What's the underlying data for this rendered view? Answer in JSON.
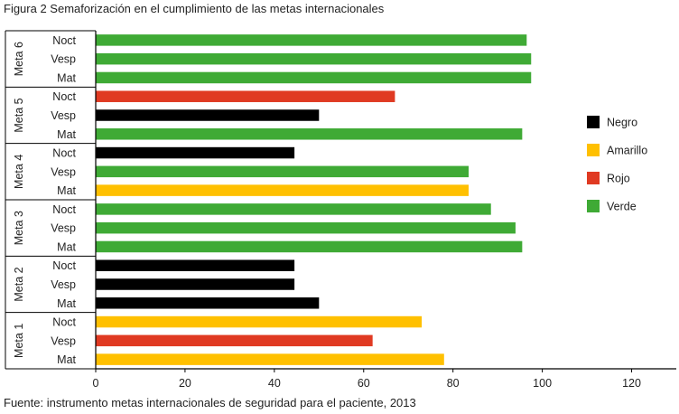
{
  "title": "Figura 2 Semaforización en el cumplimiento de las metas internacionales",
  "source": "Fuente: instrumento metas internacionales de seguridad para el paciente, 2013",
  "colors": {
    "Negro": "#000000",
    "Amarillo": "#ffc000",
    "Rojo": "#e03a22",
    "Verde": "#3faa35",
    "axis": "#000000"
  },
  "chart_data": {
    "type": "bar",
    "orientation": "horizontal",
    "xlim": [
      0,
      130
    ],
    "xticks": [
      "0",
      "20",
      "40",
      "60",
      "80",
      "100",
      "120"
    ],
    "legend": [
      "Negro",
      "Amarillo",
      "Rojo",
      "Verde"
    ],
    "legend_position": "right",
    "groups": [
      {
        "label": "Meta 6",
        "rows": [
          {
            "label": "Noct",
            "value": 96.5,
            "color": "Verde"
          },
          {
            "label": "Vesp",
            "value": 97.5,
            "color": "Verde"
          },
          {
            "label": "Mat",
            "value": 97.5,
            "color": "Verde"
          }
        ]
      },
      {
        "label": "Meta 5",
        "rows": [
          {
            "label": "Noct",
            "value": 67,
            "color": "Rojo"
          },
          {
            "label": "Vesp",
            "value": 50,
            "color": "Negro"
          },
          {
            "label": "Mat",
            "value": 95.5,
            "color": "Verde"
          }
        ]
      },
      {
        "label": "Meta 4",
        "rows": [
          {
            "label": "Noct",
            "value": 44.5,
            "color": "Negro"
          },
          {
            "label": "Vesp",
            "value": 83.5,
            "color": "Verde"
          },
          {
            "label": "Mat",
            "value": 83.5,
            "color": "Amarillo"
          }
        ]
      },
      {
        "label": "Meta 3",
        "rows": [
          {
            "label": "Noct",
            "value": 88.5,
            "color": "Verde"
          },
          {
            "label": "Vesp",
            "value": 94,
            "color": "Verde"
          },
          {
            "label": "Mat",
            "value": 95.5,
            "color": "Verde"
          }
        ]
      },
      {
        "label": "Meta 2",
        "rows": [
          {
            "label": "Noct",
            "value": 44.5,
            "color": "Negro"
          },
          {
            "label": "Vesp",
            "value": 44.5,
            "color": "Negro"
          },
          {
            "label": "Mat",
            "value": 50,
            "color": "Negro"
          }
        ]
      },
      {
        "label": "Meta 1",
        "rows": [
          {
            "label": "Noct",
            "value": 73,
            "color": "Amarillo"
          },
          {
            "label": "Vesp",
            "value": 62,
            "color": "Rojo"
          },
          {
            "label": "Mat",
            "value": 78,
            "color": "Amarillo"
          }
        ]
      }
    ]
  }
}
